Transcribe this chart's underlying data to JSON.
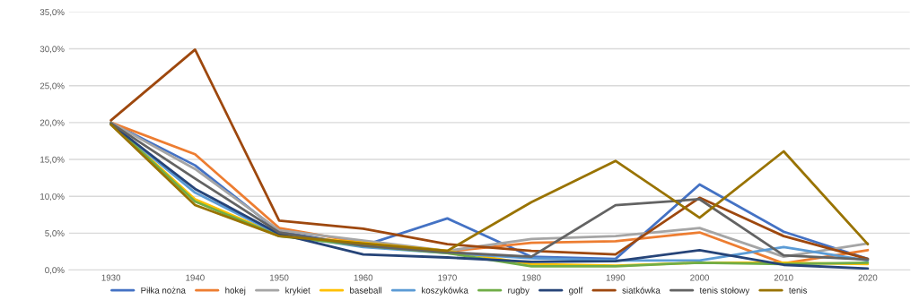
{
  "chart_data": {
    "type": "line",
    "categories": [
      "1930",
      "1940",
      "1950",
      "1960",
      "1970",
      "1980",
      "1990",
      "2000",
      "2010",
      "2020"
    ],
    "series": [
      {
        "name": "Piłka nożna",
        "color": "#4472c4",
        "values": [
          20.0,
          14.2,
          5.2,
          3.3,
          7.0,
          1.8,
          1.5,
          11.6,
          5.2,
          1.5
        ]
      },
      {
        "name": "hokej",
        "color": "#ed7d31",
        "values": [
          20.0,
          15.7,
          5.7,
          3.7,
          2.5,
          3.7,
          3.9,
          5.1,
          0.9,
          2.7
        ]
      },
      {
        "name": "krykiet",
        "color": "#a5a5a5",
        "values": [
          20.0,
          13.7,
          5.4,
          null,
          2.6,
          4.2,
          4.6,
          5.7,
          1.8,
          3.6
        ]
      },
      {
        "name": "baseball",
        "color": "#ffc000",
        "values": [
          19.9,
          9.6,
          4.7,
          3.7,
          2.6,
          0.8,
          0.6,
          1.0,
          1.0,
          0.8
        ]
      },
      {
        "name": "koszykówka",
        "color": "#5b9bd5",
        "values": [
          19.9,
          10.5,
          4.8,
          3.1,
          2.3,
          1.6,
          1.3,
          1.3,
          3.1,
          1.3
        ]
      },
      {
        "name": "rugby",
        "color": "#70ad47",
        "values": [
          19.9,
          9.3,
          4.6,
          3.3,
          2.3,
          0.5,
          0.5,
          1.0,
          0.8,
          1.0
        ]
      },
      {
        "name": "golf",
        "color": "#264478",
        "values": [
          19.8,
          11.0,
          4.9,
          2.1,
          1.7,
          1.1,
          1.2,
          2.7,
          0.7,
          0.2
        ]
      },
      {
        "name": "siatkówka",
        "color": "#9e480e",
        "values": [
          20.3,
          29.9,
          6.7,
          5.6,
          3.5,
          2.6,
          2.1,
          9.8,
          4.6,
          1.5
        ]
      },
      {
        "name": "tenis stołowy",
        "color": "#636363",
        "values": [
          19.9,
          12.4,
          5.1,
          3.3,
          2.4,
          1.8,
          8.8,
          9.6,
          2.0,
          1.4
        ]
      },
      {
        "name": "tenis",
        "color": "#997300",
        "values": [
          19.7,
          8.8,
          4.6,
          3.6,
          2.6,
          9.2,
          14.8,
          7.1,
          16.1,
          3.5
        ]
      }
    ],
    "ylim": [
      0,
      35
    ],
    "yticks": [
      {
        "value": 0,
        "label": "0,0%"
      },
      {
        "value": 5,
        "label": "5,0%"
      },
      {
        "value": 10,
        "label": "10,0%"
      },
      {
        "value": 15,
        "label": "15,0%"
      },
      {
        "value": 20,
        "label": "20,0%"
      },
      {
        "value": 25,
        "label": "25,0%"
      },
      {
        "value": 30,
        "label": "30,0%"
      },
      {
        "value": 35,
        "label": "35,0%"
      }
    ],
    "grid": "y",
    "legend": "bottom",
    "marker": "none",
    "line_style": "solid"
  }
}
